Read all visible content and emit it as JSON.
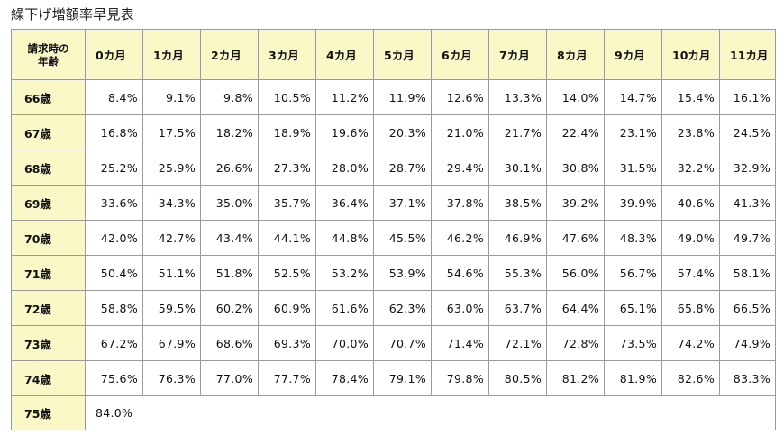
{
  "title": "繰下げ増額率早見表",
  "table": {
    "corner_label": "請求時の年齢",
    "months": [
      "0カ月",
      "1カ月",
      "2カ月",
      "3カ月",
      "4カ月",
      "5カ月",
      "6カ月",
      "7カ月",
      "8カ月",
      "9カ月",
      "10カ月",
      "11カ月"
    ],
    "rows": [
      {
        "age": "66歳",
        "values": [
          "8.4%",
          "9.1%",
          "9.8%",
          "10.5%",
          "11.2%",
          "11.9%",
          "12.6%",
          "13.3%",
          "14.0%",
          "14.7%",
          "15.4%",
          "16.1%"
        ]
      },
      {
        "age": "67歳",
        "values": [
          "16.8%",
          "17.5%",
          "18.2%",
          "18.9%",
          "19.6%",
          "20.3%",
          "21.0%",
          "21.7%",
          "22.4%",
          "23.1%",
          "23.8%",
          "24.5%"
        ]
      },
      {
        "age": "68歳",
        "values": [
          "25.2%",
          "25.9%",
          "26.6%",
          "27.3%",
          "28.0%",
          "28.7%",
          "29.4%",
          "30.1%",
          "30.8%",
          "31.5%",
          "32.2%",
          "32.9%"
        ]
      },
      {
        "age": "69歳",
        "values": [
          "33.6%",
          "34.3%",
          "35.0%",
          "35.7%",
          "36.4%",
          "37.1%",
          "37.8%",
          "38.5%",
          "39.2%",
          "39.9%",
          "40.6%",
          "41.3%"
        ]
      },
      {
        "age": "70歳",
        "values": [
          "42.0%",
          "42.7%",
          "43.4%",
          "44.1%",
          "44.8%",
          "45.5%",
          "46.2%",
          "46.9%",
          "47.6%",
          "48.3%",
          "49.0%",
          "49.7%"
        ]
      },
      {
        "age": "71歳",
        "values": [
          "50.4%",
          "51.1%",
          "51.8%",
          "52.5%",
          "53.2%",
          "53.9%",
          "54.6%",
          "55.3%",
          "56.0%",
          "56.7%",
          "57.4%",
          "58.1%"
        ]
      },
      {
        "age": "72歳",
        "values": [
          "58.8%",
          "59.5%",
          "60.2%",
          "60.9%",
          "61.6%",
          "62.3%",
          "63.0%",
          "63.7%",
          "64.4%",
          "65.1%",
          "65.8%",
          "66.5%"
        ]
      },
      {
        "age": "73歳",
        "values": [
          "67.2%",
          "67.9%",
          "68.6%",
          "69.3%",
          "70.0%",
          "70.7%",
          "71.4%",
          "72.1%",
          "72.8%",
          "73.5%",
          "74.2%",
          "74.9%"
        ]
      },
      {
        "age": "74歳",
        "values": [
          "75.6%",
          "76.3%",
          "77.0%",
          "77.7%",
          "78.4%",
          "79.1%",
          "79.8%",
          "80.5%",
          "81.2%",
          "81.9%",
          "82.6%",
          "83.3%"
        ]
      }
    ],
    "last_row": {
      "age": "75歳",
      "value": "84.0%"
    }
  },
  "colors": {
    "header_background": "#fbf8c7",
    "cell_background": "#ffffff",
    "border": "#9a9a9a",
    "text": "#111111"
  }
}
